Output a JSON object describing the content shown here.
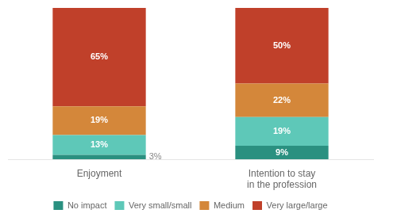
{
  "chart_data": {
    "type": "bar",
    "stacked": true,
    "orientation": "vertical",
    "categories": [
      "Enjoyment",
      "Intention to stay\nin the profession"
    ],
    "series": [
      {
        "name": "No impact",
        "color": "#2a9080",
        "values": [
          3,
          9
        ],
        "value_labels": [
          "3%",
          "9%"
        ]
      },
      {
        "name": "Very small/small",
        "color": "#5ec8b8",
        "values": [
          13,
          19
        ],
        "value_labels": [
          "13%",
          "19%"
        ]
      },
      {
        "name": "Medium",
        "color": "#d4873a",
        "values": [
          19,
          22
        ],
        "value_labels": [
          "19%",
          "22%"
        ]
      },
      {
        "name": "Very large/large",
        "color": "#c0402a",
        "values": [
          65,
          50
        ],
        "value_labels": [
          "65%",
          "50%"
        ]
      }
    ],
    "ylim": [
      0,
      100
    ],
    "grid": false,
    "legend": "bottom",
    "data_labels": true,
    "tick_labels": "x"
  }
}
